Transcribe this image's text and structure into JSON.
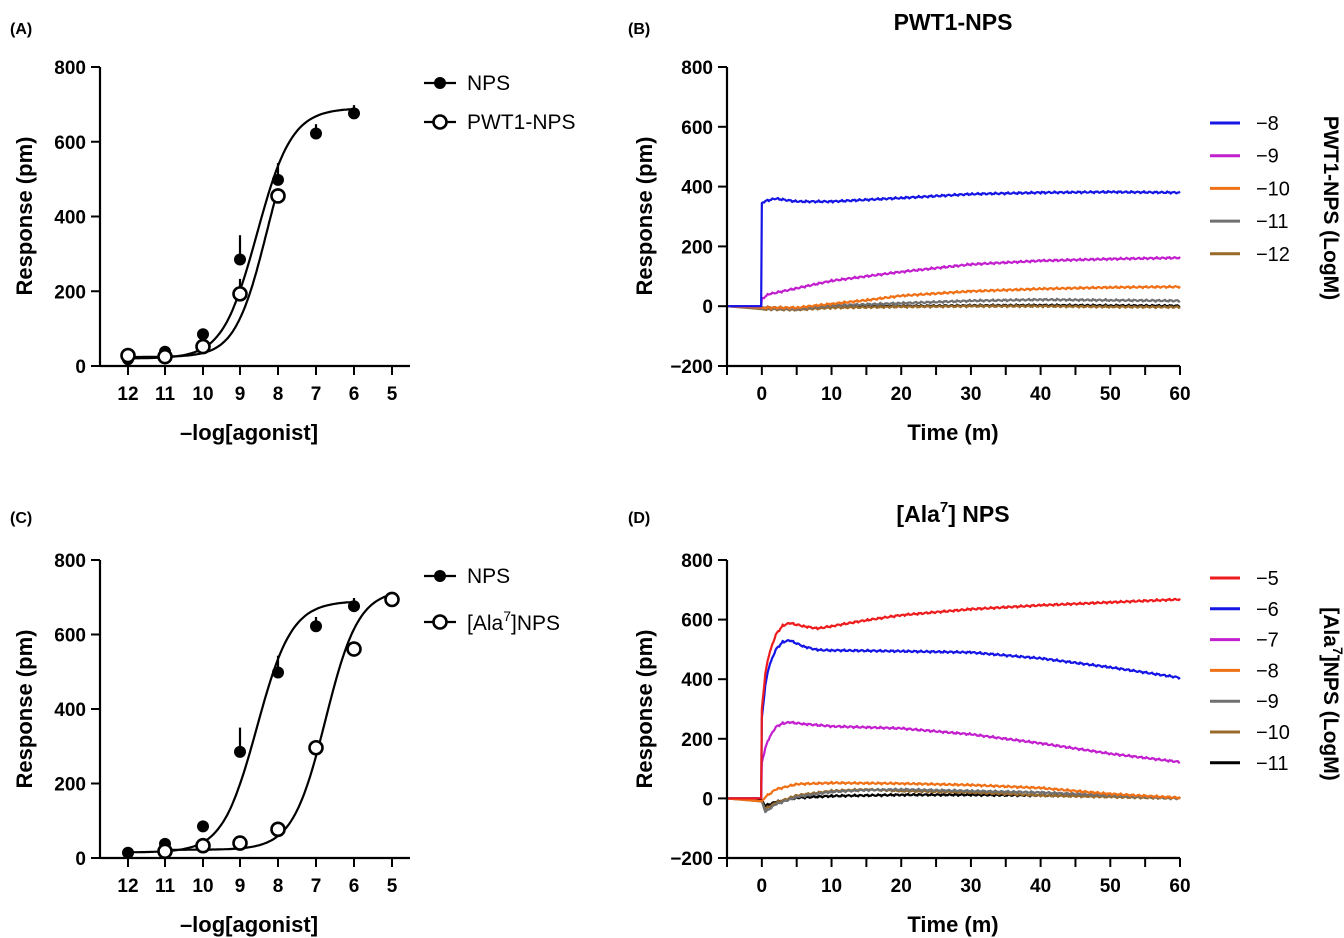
{
  "panels": {
    "A": {
      "letter": "(A)",
      "xlabel": "–log[agonist]",
      "ylabel": "Response (pm)",
      "x_ticks": [
        "12",
        "11",
        "10",
        "9",
        "8",
        "7",
        "6",
        "5"
      ],
      "y_ticks": [
        "0",
        "200",
        "400",
        "600",
        "800"
      ],
      "legend": [
        "NPS",
        "PWT1-NPS"
      ]
    },
    "B": {
      "letter": "(B)",
      "title": "PWT1-NPS",
      "xlabel": "Time (m)",
      "ylabel": "Response (pm)",
      "x_ticks": [
        "0",
        "10",
        "20",
        "30",
        "40",
        "50",
        "60"
      ],
      "y_ticks": [
        "−200",
        "0",
        "200",
        "400",
        "600",
        "800"
      ],
      "legend_title": "PWT1-NPS (LogM)",
      "legend": [
        "−8",
        "−9",
        "−10",
        "−11",
        "−12"
      ]
    },
    "C": {
      "letter": "(C)",
      "xlabel": "–log[agonist]",
      "ylabel": "Response (pm)",
      "x_ticks": [
        "12",
        "11",
        "10",
        "9",
        "8",
        "7",
        "6",
        "5"
      ],
      "y_ticks": [
        "0",
        "200",
        "400",
        "600",
        "800"
      ],
      "legend_nps": "NPS",
      "legend_ala_pre": "[Ala",
      "legend_ala_sup": "7",
      "legend_ala_post": "]NPS"
    },
    "D": {
      "letter": "(D)",
      "title_pre": "[Ala",
      "title_sup": "7",
      "title_post": "] NPS",
      "xlabel": "Time (m)",
      "ylabel": "Response (pm)",
      "x_ticks": [
        "0",
        "10",
        "20",
        "30",
        "40",
        "50",
        "60"
      ],
      "y_ticks": [
        "−200",
        "0",
        "200",
        "400",
        "600",
        "800"
      ],
      "legend_title_pre": "[Ala",
      "legend_title_sup": "7",
      "legend_title_post": "]NPS (LogM)",
      "legend": [
        "−5",
        "−6",
        "−7",
        "−8",
        "−9",
        "−10",
        "−11"
      ]
    }
  },
  "chart_data": [
    {
      "panel": "A",
      "type": "scatter",
      "xlabel": "–log[agonist]",
      "ylabel": "Response (pm)",
      "xlim": [
        12,
        5
      ],
      "ylim": [
        0,
        800
      ],
      "series": [
        {
          "name": "NPS",
          "marker": "filled-circle",
          "x": [
            12,
            11,
            10,
            9,
            8,
            7,
            6
          ],
          "y": [
            18,
            38,
            85,
            285,
            498,
            622,
            676
          ],
          "err": [
            5,
            6,
            10,
            65,
            45,
            25,
            22
          ],
          "fit": {
            "bottom": 20,
            "top": 690,
            "ec50": 8.55,
            "hill": 0.95
          }
        },
        {
          "name": "PWT1-NPS",
          "marker": "open-circle",
          "x": [
            12,
            11,
            10,
            9,
            8
          ],
          "y": [
            28,
            25,
            52,
            193,
            455
          ],
          "err": [
            5,
            5,
            8,
            40,
            8
          ],
          "fit": {
            "bottom": 24,
            "top": 690,
            "ec50": 8.3,
            "hill": 1.05
          }
        }
      ]
    },
    {
      "panel": "B",
      "type": "line",
      "title": "PWT1-NPS",
      "xlabel": "Time (m)",
      "ylabel": "Response (pm)",
      "xlim": [
        -5,
        60
      ],
      "ylim": [
        -200,
        800
      ],
      "series": [
        {
          "name": "−8",
          "color": "#1515e6",
          "x": [
            -5,
            -0.1,
            0,
            0.5,
            2,
            5,
            10,
            20,
            30,
            40,
            50,
            60
          ],
          "y": [
            0,
            0,
            345,
            352,
            360,
            350,
            350,
            362,
            375,
            380,
            382,
            380
          ]
        },
        {
          "name": "−9",
          "color": "#c21fce",
          "x": [
            -5,
            -0.1,
            0,
            1,
            5,
            10,
            20,
            30,
            40,
            50,
            60
          ],
          "y": [
            0,
            0,
            25,
            40,
            60,
            85,
            115,
            140,
            152,
            158,
            162
          ]
        },
        {
          "name": "−10",
          "color": "#f07016",
          "x": [
            -5,
            0,
            5,
            10,
            15,
            20,
            30,
            40,
            50,
            60
          ],
          "y": [
            0,
            -5,
            -5,
            8,
            20,
            35,
            50,
            58,
            63,
            65
          ]
        },
        {
          "name": "−11",
          "color": "#707070",
          "x": [
            -5,
            0,
            5,
            10,
            20,
            30,
            40,
            50,
            60
          ],
          "y": [
            0,
            -8,
            -10,
            2,
            10,
            18,
            22,
            20,
            18
          ]
        },
        {
          "name": "−12",
          "color": "#9a6a2a",
          "x": [
            -5,
            0,
            5,
            10,
            20,
            30,
            40,
            50,
            60
          ],
          "y": [
            0,
            -10,
            -12,
            -5,
            -2,
            0,
            0,
            -2,
            -3
          ]
        },
        {
          "name": "",
          "color": "#000000",
          "x": [
            -5,
            0,
            5,
            10,
            20,
            30,
            40,
            50,
            60
          ],
          "y": [
            0,
            -4,
            -6,
            -3,
            0,
            2,
            3,
            2,
            1
          ]
        }
      ]
    },
    {
      "panel": "C",
      "type": "scatter",
      "xlabel": "–log[agonist]",
      "ylabel": "Response (pm)",
      "xlim": [
        12,
        5
      ],
      "ylim": [
        0,
        800
      ],
      "series": [
        {
          "name": "NPS",
          "marker": "filled-circle",
          "x": [
            12,
            11,
            10,
            9,
            8,
            7,
            6
          ],
          "y": [
            14,
            38,
            85,
            285,
            498,
            622,
            676
          ],
          "err": [
            4,
            6,
            10,
            65,
            45,
            25,
            22
          ],
          "fit": {
            "bottom": 15,
            "top": 690,
            "ec50": 8.55,
            "hill": 0.95
          }
        },
        {
          "name": "[Ala7]NPS",
          "marker": "open-circle",
          "x": [
            11,
            10,
            9,
            8,
            7,
            6,
            5
          ],
          "y": [
            18,
            33,
            40,
            77,
            296,
            561,
            694
          ],
          "err": [
            5,
            5,
            6,
            8,
            10,
            12,
            10
          ],
          "fit": {
            "bottom": 22,
            "top": 720,
            "ec50": 6.75,
            "hill": 1.0
          }
        }
      ]
    },
    {
      "panel": "D",
      "type": "line",
      "title": "[Ala7] NPS",
      "xlabel": "Time (m)",
      "ylabel": "Response (pm)",
      "xlim": [
        -5,
        60
      ],
      "ylim": [
        -200,
        800
      ],
      "series": [
        {
          "name": "−5",
          "color": "#ee1c1c",
          "x": [
            -5,
            -0.1,
            0,
            0.5,
            1,
            2,
            3,
            4,
            6,
            8,
            10,
            15,
            20,
            30,
            40,
            50,
            60
          ],
          "y": [
            0,
            0,
            300,
            420,
            480,
            550,
            580,
            588,
            578,
            570,
            578,
            598,
            615,
            635,
            648,
            658,
            668
          ]
        },
        {
          "name": "−6",
          "color": "#1515e6",
          "x": [
            -5,
            -0.1,
            0,
            0.5,
            1,
            2,
            3,
            4,
            6,
            8,
            10,
            20,
            30,
            40,
            50,
            60
          ],
          "y": [
            0,
            0,
            270,
            380,
            440,
            500,
            525,
            530,
            510,
            498,
            497,
            494,
            490,
            470,
            440,
            405
          ]
        },
        {
          "name": "−7",
          "color": "#c21fce",
          "x": [
            -5,
            -0.1,
            0,
            0.5,
            1,
            2,
            3,
            4,
            6,
            10,
            20,
            30,
            40,
            50,
            60
          ],
          "y": [
            0,
            0,
            120,
            170,
            200,
            240,
            252,
            255,
            250,
            242,
            235,
            215,
            185,
            150,
            122
          ]
        },
        {
          "name": "−8",
          "color": "#f07016",
          "x": [
            -5,
            0,
            0.5,
            2,
            5,
            10,
            20,
            30,
            40,
            50,
            60
          ],
          "y": [
            0,
            -10,
            5,
            30,
            48,
            52,
            50,
            45,
            35,
            15,
            2
          ]
        },
        {
          "name": "−9",
          "color": "#707070",
          "x": [
            -5,
            0,
            0.5,
            2,
            5,
            10,
            15,
            20,
            30,
            40,
            50,
            60
          ],
          "y": [
            0,
            -10,
            -45,
            -20,
            5,
            22,
            28,
            30,
            25,
            20,
            10,
            0
          ]
        },
        {
          "name": "−10",
          "color": "#9a6a2a",
          "x": [
            -5,
            0,
            0.5,
            2,
            5,
            10,
            15,
            20,
            30,
            40,
            50,
            60
          ],
          "y": [
            0,
            -10,
            -35,
            -15,
            10,
            25,
            30,
            25,
            20,
            10,
            5,
            0
          ]
        },
        {
          "name": "−11",
          "color": "#000000",
          "x": [
            -5,
            0,
            0.5,
            2,
            5,
            10,
            20,
            30,
            40,
            50,
            60
          ],
          "y": [
            0,
            -5,
            -25,
            -12,
            2,
            8,
            12,
            12,
            10,
            8,
            2
          ]
        }
      ]
    }
  ]
}
